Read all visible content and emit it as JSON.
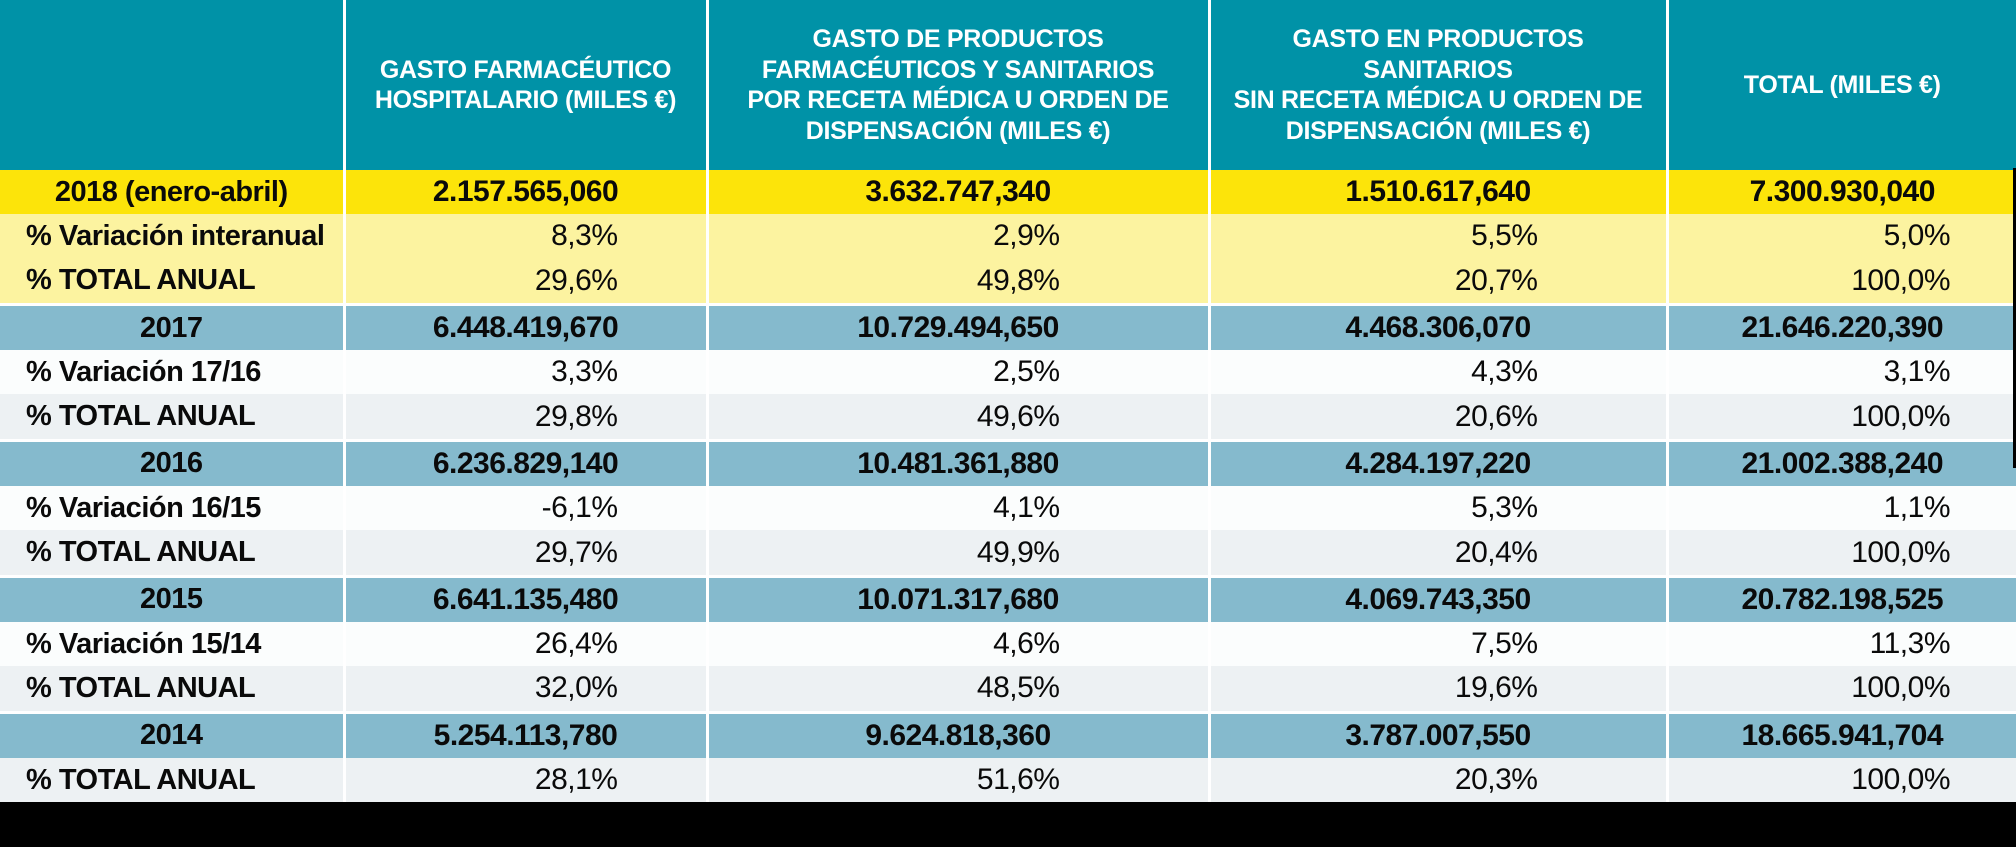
{
  "chart_data": {
    "type": "table",
    "title": "",
    "columns": [
      "",
      "GASTO FARMACÉUTICO\nHOSPITALARIO (MILES €)",
      "GASTO DE PRODUCTOS\nFARMACÉUTICOS Y SANITARIOS\nPOR RECETA MÉDICA U ORDEN DE\nDISPENSACIÓN (MILES €)",
      "GASTO EN PRODUCTOS SANITARIOS\nSIN RECETA MÉDICA U ORDEN DE\nDISPENSACIÓN (MILES €)",
      "TOTAL (MILES €)"
    ],
    "rows": [
      {
        "kind": "year-highlight",
        "label": "2018 (enero-abril)",
        "values": [
          "2.157.565,060",
          "3.632.747,340",
          "1.510.617,640",
          "7.300.930,040"
        ]
      },
      {
        "kind": "pct-highlight",
        "label": "% Variación interanual",
        "values": [
          "8,3%",
          "2,9%",
          "5,5%",
          "5,0%"
        ]
      },
      {
        "kind": "pct-highlight",
        "label": "% TOTAL ANUAL",
        "values": [
          "29,6%",
          "49,8%",
          "20,7%",
          "100,0%"
        ]
      },
      {
        "kind": "year",
        "label": "2017",
        "values": [
          "6.448.419,670",
          "10.729.494,650",
          "4.468.306,070",
          "21.646.220,390"
        ]
      },
      {
        "kind": "pct-white",
        "label": "% Variación 17/16",
        "values": [
          "3,3%",
          "2,5%",
          "4,3%",
          "3,1%"
        ]
      },
      {
        "kind": "pct-gray",
        "label": "% TOTAL ANUAL",
        "values": [
          "29,8%",
          "49,6%",
          "20,6%",
          "100,0%"
        ]
      },
      {
        "kind": "year",
        "label": "2016",
        "values": [
          "6.236.829,140",
          "10.481.361,880",
          "4.284.197,220",
          "21.002.388,240"
        ]
      },
      {
        "kind": "pct-white",
        "label": "% Variación 16/15",
        "values": [
          "-6,1%",
          "4,1%",
          "5,3%",
          "1,1%"
        ]
      },
      {
        "kind": "pct-gray",
        "label": "% TOTAL ANUAL",
        "values": [
          "29,7%",
          "49,9%",
          "20,4%",
          "100,0%"
        ]
      },
      {
        "kind": "year",
        "label": "2015",
        "values": [
          "6.641.135,480",
          "10.071.317,680",
          "4.069.743,350",
          "20.782.198,525"
        ]
      },
      {
        "kind": "pct-white",
        "label": "% Variación 15/14",
        "values": [
          "26,4%",
          "4,6%",
          "7,5%",
          "11,3%"
        ]
      },
      {
        "kind": "pct-gray",
        "label": "% TOTAL ANUAL",
        "values": [
          "32,0%",
          "48,5%",
          "19,6%",
          "100,0%"
        ]
      },
      {
        "kind": "year",
        "label": "2014",
        "values": [
          "5.254.113,780",
          "9.624.818,360",
          "3.787.007,550",
          "18.665.941,704"
        ]
      },
      {
        "kind": "pct-gray",
        "label": "% TOTAL ANUAL",
        "values": [
          "28,1%",
          "51,6%",
          "20,3%",
          "100,0%"
        ]
      }
    ]
  },
  "colors": {
    "teal": "#0092a7",
    "yellow": "#fce40a",
    "paleYellow": "#fcf3a0",
    "blue": "#85bacd",
    "rowWhite": "#fbfdfd",
    "rowGray": "#edf1f3",
    "barBlack": "#000000"
  }
}
